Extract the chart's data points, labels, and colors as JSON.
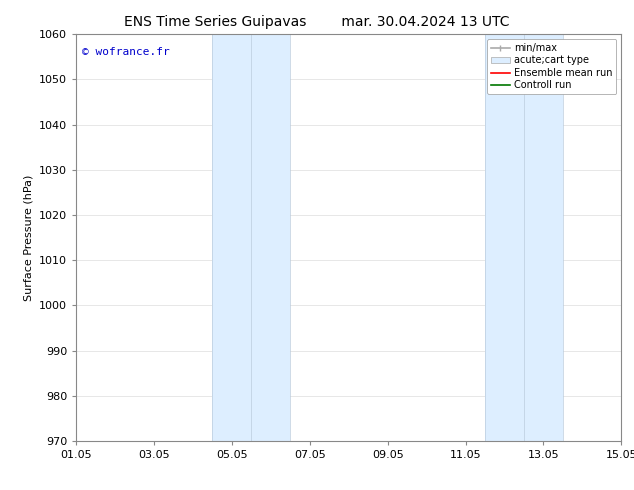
{
  "title_left": "ENS Time Series Guipavas",
  "title_right": "mar. 30.04.2024 13 UTC",
  "ylabel": "Surface Pressure (hPa)",
  "ylim": [
    970,
    1060
  ],
  "yticks": [
    970,
    980,
    990,
    1000,
    1010,
    1020,
    1030,
    1040,
    1050,
    1060
  ],
  "xlim": [
    0,
    14
  ],
  "xtick_positions": [
    0,
    2,
    4,
    6,
    8,
    10,
    12,
    14
  ],
  "xtick_labels": [
    "01.05",
    "03.05",
    "05.05",
    "07.05",
    "09.05",
    "11.05",
    "13.05",
    "15.05"
  ],
  "shaded_bands": [
    {
      "x_start": 3.5,
      "x_end": 4.5,
      "color": "#ddeeff"
    },
    {
      "x_start": 4.5,
      "x_end": 5.5,
      "color": "#ddeeff"
    },
    {
      "x_start": 10.5,
      "x_end": 11.5,
      "color": "#ddeeff"
    },
    {
      "x_start": 11.5,
      "x_end": 12.5,
      "color": "#ddeeff"
    }
  ],
  "watermark_text": "© wofrance.fr",
  "watermark_color": "#0000cc",
  "legend_entries": [
    {
      "label": "min/max",
      "color": "#aaaaaa",
      "lw": 1.5
    },
    {
      "label": "acute;cart type",
      "color": "#ccddee",
      "lw": 8
    },
    {
      "label": "Ensemble mean run",
      "color": "red",
      "lw": 1.5
    },
    {
      "label": "Controll run",
      "color": "green",
      "lw": 1.5
    }
  ],
  "background_color": "#ffffff",
  "grid_color": "#dddddd",
  "title_fontsize": 10,
  "label_fontsize": 8,
  "tick_fontsize": 8,
  "legend_fontsize": 7
}
